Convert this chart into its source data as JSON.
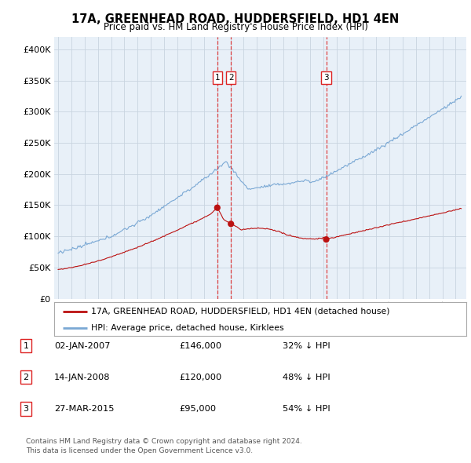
{
  "title": "17A, GREENHEAD ROAD, HUDDERSFIELD, HD1 4EN",
  "subtitle": "Price paid vs. HM Land Registry's House Price Index (HPI)",
  "background_color": "#ffffff",
  "chart_bg_color": "#e8f0f8",
  "grid_color": "#c8d4e0",
  "sale_color": "#bb1111",
  "hpi_color": "#7aa8d4",
  "vline_color": "#dd2222",
  "sales": [
    {
      "num": 1,
      "date_x": 2007.01,
      "price": 146000
    },
    {
      "num": 2,
      "date_x": 2008.04,
      "price": 120000
    },
    {
      "num": 3,
      "date_x": 2015.23,
      "price": 95000
    }
  ],
  "legend_line1": "17A, GREENHEAD ROAD, HUDDERSFIELD, HD1 4EN (detached house)",
  "legend_line2": "HPI: Average price, detached house, Kirklees",
  "footer1": "Contains HM Land Registry data © Crown copyright and database right 2024.",
  "footer2": "This data is licensed under the Open Government Licence v3.0.",
  "table": [
    {
      "num": 1,
      "date": "02-JAN-2007",
      "price": "£146,000",
      "rel": "32% ↓ HPI"
    },
    {
      "num": 2,
      "date": "14-JAN-2008",
      "price": "£120,000",
      "rel": "48% ↓ HPI"
    },
    {
      "num": 3,
      "date": "27-MAR-2015",
      "price": "£95,000",
      "rel": "54% ↓ HPI"
    }
  ],
  "ylim": [
    0,
    420000
  ],
  "yticks": [
    0,
    50000,
    100000,
    150000,
    200000,
    250000,
    300000,
    350000,
    400000
  ],
  "xlim_lo": 1994.7,
  "xlim_hi": 2025.8
}
